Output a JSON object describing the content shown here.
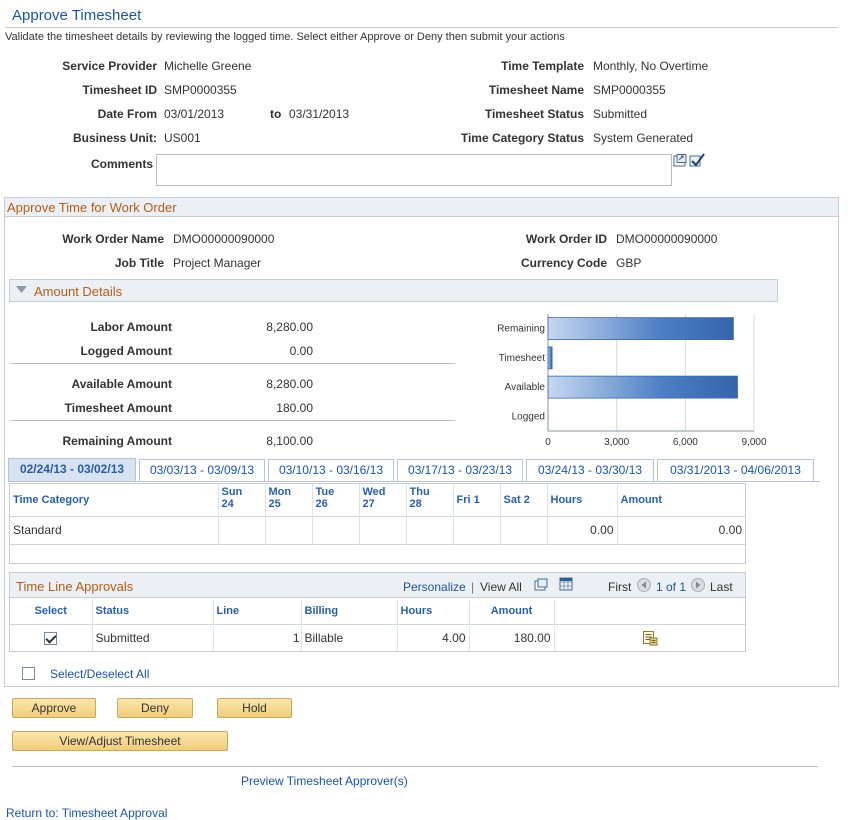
{
  "page": {
    "title": "Approve Timesheet",
    "instructions": "Validate the timesheet details by reviewing the logged time. Select either Approve or Deny then submit your actions"
  },
  "header": {
    "service_provider": {
      "label": "Service Provider",
      "value": "Michelle Greene"
    },
    "timesheet_id": {
      "label": "Timesheet ID",
      "value": "SMP0000355"
    },
    "date_from": {
      "label": "Date From",
      "value": "03/01/2013"
    },
    "date_to": {
      "label": "to",
      "value": "03/31/2013"
    },
    "business_unit": {
      "label": "Business Unit:",
      "value": "US001"
    },
    "time_template": {
      "label": "Time Template",
      "value": "Monthly, No Overtime"
    },
    "timesheet_name": {
      "label": "Timesheet Name",
      "value": "SMP0000355"
    },
    "timesheet_status": {
      "label": "Timesheet Status",
      "value": "Submitted"
    },
    "time_category_status": {
      "label": "Time Category Status",
      "value": "System Generated"
    },
    "comments": {
      "label": "Comments",
      "value": ""
    }
  },
  "work_order": {
    "section_title": "Approve Time for Work Order",
    "work_order_name": {
      "label": "Work Order Name",
      "value": "DMO00000090000"
    },
    "job_title": {
      "label": "Job Title",
      "value": "Project Manager"
    },
    "work_order_id": {
      "label": "Work Order ID",
      "value": "DMO00000090000"
    },
    "currency_code": {
      "label": "Currency Code",
      "value": "GBP"
    }
  },
  "amount_details": {
    "section_title": "Amount Details",
    "labor_amount": {
      "label": "Labor Amount",
      "value": "8,280.00"
    },
    "logged_amount": {
      "label": "Logged Amount",
      "value": "0.00"
    },
    "available_amount": {
      "label": "Available Amount",
      "value": "8,280.00"
    },
    "timesheet_amount": {
      "label": "Timesheet Amount",
      "value": "180.00"
    },
    "remaining_amount": {
      "label": "Remaining Amount",
      "value": "8,100.00"
    }
  },
  "chart_data": {
    "type": "bar",
    "orientation": "horizontal",
    "categories": [
      "Remaining",
      "Timesheet",
      "Available",
      "Logged"
    ],
    "values": [
      8100,
      180,
      8280,
      0
    ],
    "xticks": [
      0,
      3000,
      6000,
      9000
    ],
    "xtick_labels": [
      "0",
      "3,000",
      "6,000",
      "9,000"
    ],
    "xlim": [
      0,
      9000
    ],
    "grid": true,
    "bar_color": "#4d7fc4",
    "title": "",
    "xlabel": "",
    "ylabel": ""
  },
  "week_tabs": [
    {
      "label": "02/24/13 - 03/02/13",
      "active": true
    },
    {
      "label": "03/03/13 - 03/09/13",
      "active": false
    },
    {
      "label": "03/10/13 - 03/16/13",
      "active": false
    },
    {
      "label": "03/17/13 - 03/23/13",
      "active": false
    },
    {
      "label": "03/24/13 - 03/30/13",
      "active": false
    },
    {
      "label": "03/31/2013 - 04/06/2013",
      "active": false
    }
  ],
  "time_grid": {
    "col_time_category": "Time Category",
    "days": [
      {
        "dow": "Sun",
        "day": "24"
      },
      {
        "dow": "Mon",
        "day": "25"
      },
      {
        "dow": "Tue",
        "day": "26"
      },
      {
        "dow": "Wed",
        "day": "27"
      },
      {
        "dow": "Thu",
        "day": "28"
      },
      {
        "dow": "Fri",
        "day": "1"
      },
      {
        "dow": "Sat",
        "day": "2"
      }
    ],
    "col_hours": "Hours",
    "col_amount": "Amount",
    "row": {
      "category": "Standard",
      "hours": "0.00",
      "amount": "0.00"
    }
  },
  "approvals": {
    "section_title": "Time Line Approvals",
    "personalize": "Personalize",
    "sep": "|",
    "view_all": "View All",
    "first": "First",
    "page_info": "1 of 1",
    "last": "Last",
    "columns": {
      "select": "Select",
      "status": "Status",
      "line": "Line",
      "billing": "Billing",
      "hours": "Hours",
      "amount": "Amount"
    },
    "row": {
      "selected": true,
      "status": "Submitted",
      "line": "1",
      "billing": "Billable",
      "hours": "4.00",
      "amount": "180.00"
    },
    "select_all": "Select/Deselect All"
  },
  "actions": {
    "approve": "Approve",
    "deny": "Deny",
    "hold": "Hold",
    "view_adjust": "View/Adjust Timesheet",
    "preview": "Preview Timesheet Approver(s)",
    "return_link": "Return to: Timesheet Approval"
  },
  "colors": {
    "link": "#1c54a2",
    "section_title": "#b35d1a",
    "button": "#f1cd7a"
  }
}
